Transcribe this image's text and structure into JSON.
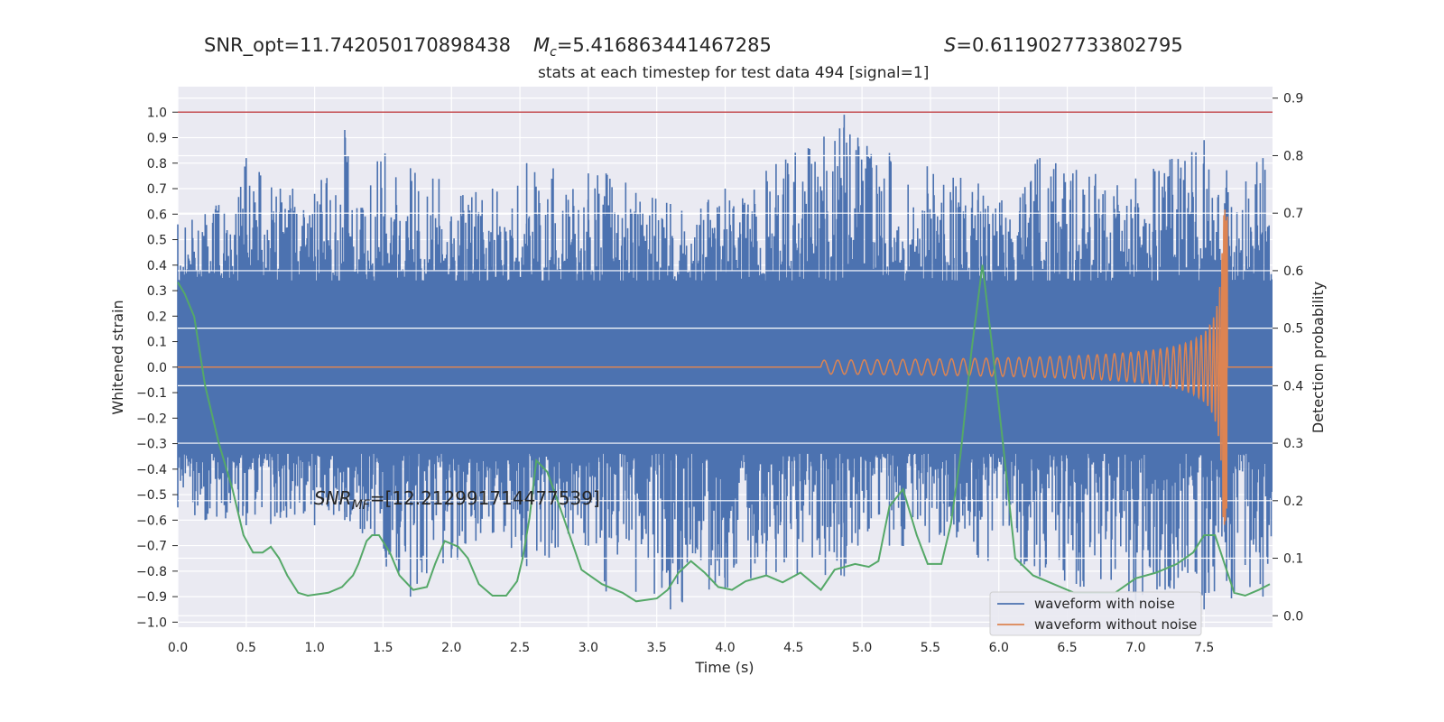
{
  "header": {
    "snr_opt": "SNR_opt=11.742050170898438",
    "mc_symbol": "M",
    "mc_sub": "c",
    "mc_value": "=5.416863441467285",
    "s_symbol": "S",
    "s_value": "=0.6119027733802795"
  },
  "annotation": {
    "symbol": "SNR",
    "sub": "MF",
    "value": "=[12.212991714477539]"
  },
  "colors": {
    "background": "#eaeaf2",
    "grid": "#ffffff",
    "noisy": "#4c72b0",
    "clean": "#dd8452",
    "probability": "#55a868",
    "threshold": "#c44e52"
  },
  "chart_data": {
    "type": "line",
    "title": "stats at each timestep for test data 494 [signal=1]",
    "xlabel": "Time (s)",
    "ylabel": "Whitened strain",
    "ylabel_right": "Detection probability",
    "xlim": [
      0,
      8
    ],
    "ylim": [
      -1.02,
      1.1
    ],
    "ylim_right": [
      -0.02,
      0.92
    ],
    "grid": true,
    "legend_position": "lower-right",
    "x_ticks": [
      "0.0",
      "0.5",
      "1.0",
      "1.5",
      "2.0",
      "2.5",
      "3.0",
      "3.5",
      "4.0",
      "4.5",
      "5.0",
      "5.5",
      "6.0",
      "6.5",
      "7.0",
      "7.5"
    ],
    "y_ticks": [
      "1.0",
      "0.9",
      "0.8",
      "0.7",
      "0.6",
      "0.5",
      "0.4",
      "0.3",
      "0.2",
      "0.1",
      "0.0",
      "−0.1",
      "−0.2",
      "−0.3",
      "−0.4",
      "−0.5",
      "−0.6",
      "−0.7",
      "−0.8",
      "−0.9",
      "−1.0"
    ],
    "y_ticks_right": [
      "0.9",
      "0.8",
      "0.7",
      "0.6",
      "0.5",
      "0.4",
      "0.3",
      "0.2",
      "0.1",
      "0.0"
    ],
    "threshold_line": {
      "y": 1.0
    },
    "series": [
      {
        "name": "waveform with noise",
        "axis": "left",
        "envelope_peaks": [
          [
            0.0,
            0.56,
            -0.55
          ],
          [
            0.2,
            0.6,
            -0.6
          ],
          [
            0.5,
            0.82,
            -0.62
          ],
          [
            1.0,
            0.68,
            -0.62
          ],
          [
            1.22,
            0.93,
            -0.6
          ],
          [
            1.7,
            0.78,
            -0.9
          ],
          [
            2.3,
            0.7,
            -0.65
          ],
          [
            2.55,
            0.8,
            -0.78
          ],
          [
            3.0,
            0.76,
            -0.7
          ],
          [
            3.13,
            0.76,
            -0.88
          ],
          [
            3.6,
            0.64,
            -0.95
          ],
          [
            4.0,
            0.7,
            -0.87
          ],
          [
            4.3,
            0.77,
            -0.82
          ],
          [
            4.87,
            0.99,
            -0.82
          ],
          [
            4.97,
            0.9,
            -0.7
          ],
          [
            5.2,
            0.84,
            -0.7
          ],
          [
            5.85,
            0.72,
            -0.75
          ],
          [
            6.3,
            0.82,
            -0.82
          ],
          [
            7.0,
            0.74,
            -0.92
          ],
          [
            7.5,
            0.89,
            -0.95
          ],
          [
            7.93,
            0.82,
            -0.9
          ]
        ]
      },
      {
        "name": "waveform without noise",
        "axis": "left",
        "chirp": {
          "start": 4.7,
          "merger": 7.65,
          "amp_start": 0.005,
          "amp_peak": 0.62
        }
      },
      {
        "name": "",
        "axis": "right",
        "x": [
          0.0,
          0.05,
          0.12,
          0.2,
          0.3,
          0.4,
          0.48,
          0.55,
          0.62,
          0.68,
          0.74,
          0.8,
          0.88,
          0.95,
          1.1,
          1.2,
          1.28,
          1.32,
          1.38,
          1.42,
          1.47,
          1.55,
          1.62,
          1.72,
          1.82,
          1.88,
          1.95,
          2.05,
          2.12,
          2.2,
          2.3,
          2.4,
          2.48,
          2.52,
          2.57,
          2.62,
          2.7,
          2.82,
          2.95,
          3.1,
          3.25,
          3.35,
          3.5,
          3.58,
          3.66,
          3.75,
          3.85,
          3.95,
          4.05,
          4.15,
          4.3,
          4.42,
          4.55,
          4.7,
          4.8,
          4.95,
          5.05,
          5.12,
          5.2,
          5.3,
          5.4,
          5.48,
          5.58,
          5.65,
          5.72,
          5.8,
          5.88,
          5.95,
          6.03,
          6.12,
          6.25,
          6.4,
          6.55,
          6.7,
          6.85,
          7.0,
          7.15,
          7.3,
          7.42,
          7.5,
          7.58,
          7.65,
          7.72,
          7.8,
          7.9,
          7.98
        ],
        "y": [
          0.58,
          0.56,
          0.52,
          0.4,
          0.3,
          0.22,
          0.14,
          0.11,
          0.11,
          0.12,
          0.1,
          0.07,
          0.04,
          0.035,
          0.04,
          0.05,
          0.07,
          0.09,
          0.13,
          0.14,
          0.14,
          0.11,
          0.07,
          0.045,
          0.05,
          0.09,
          0.13,
          0.12,
          0.1,
          0.055,
          0.035,
          0.035,
          0.06,
          0.1,
          0.17,
          0.27,
          0.25,
          0.17,
          0.08,
          0.055,
          0.04,
          0.025,
          0.03,
          0.045,
          0.075,
          0.095,
          0.075,
          0.05,
          0.045,
          0.06,
          0.07,
          0.058,
          0.075,
          0.045,
          0.08,
          0.09,
          0.085,
          0.095,
          0.19,
          0.22,
          0.14,
          0.09,
          0.09,
          0.16,
          0.28,
          0.46,
          0.61,
          0.47,
          0.3,
          0.1,
          0.07,
          0.055,
          0.04,
          0.04,
          0.04,
          0.065,
          0.075,
          0.09,
          0.11,
          0.14,
          0.14,
          0.09,
          0.04,
          0.035,
          0.045,
          0.055
        ]
      }
    ]
  }
}
